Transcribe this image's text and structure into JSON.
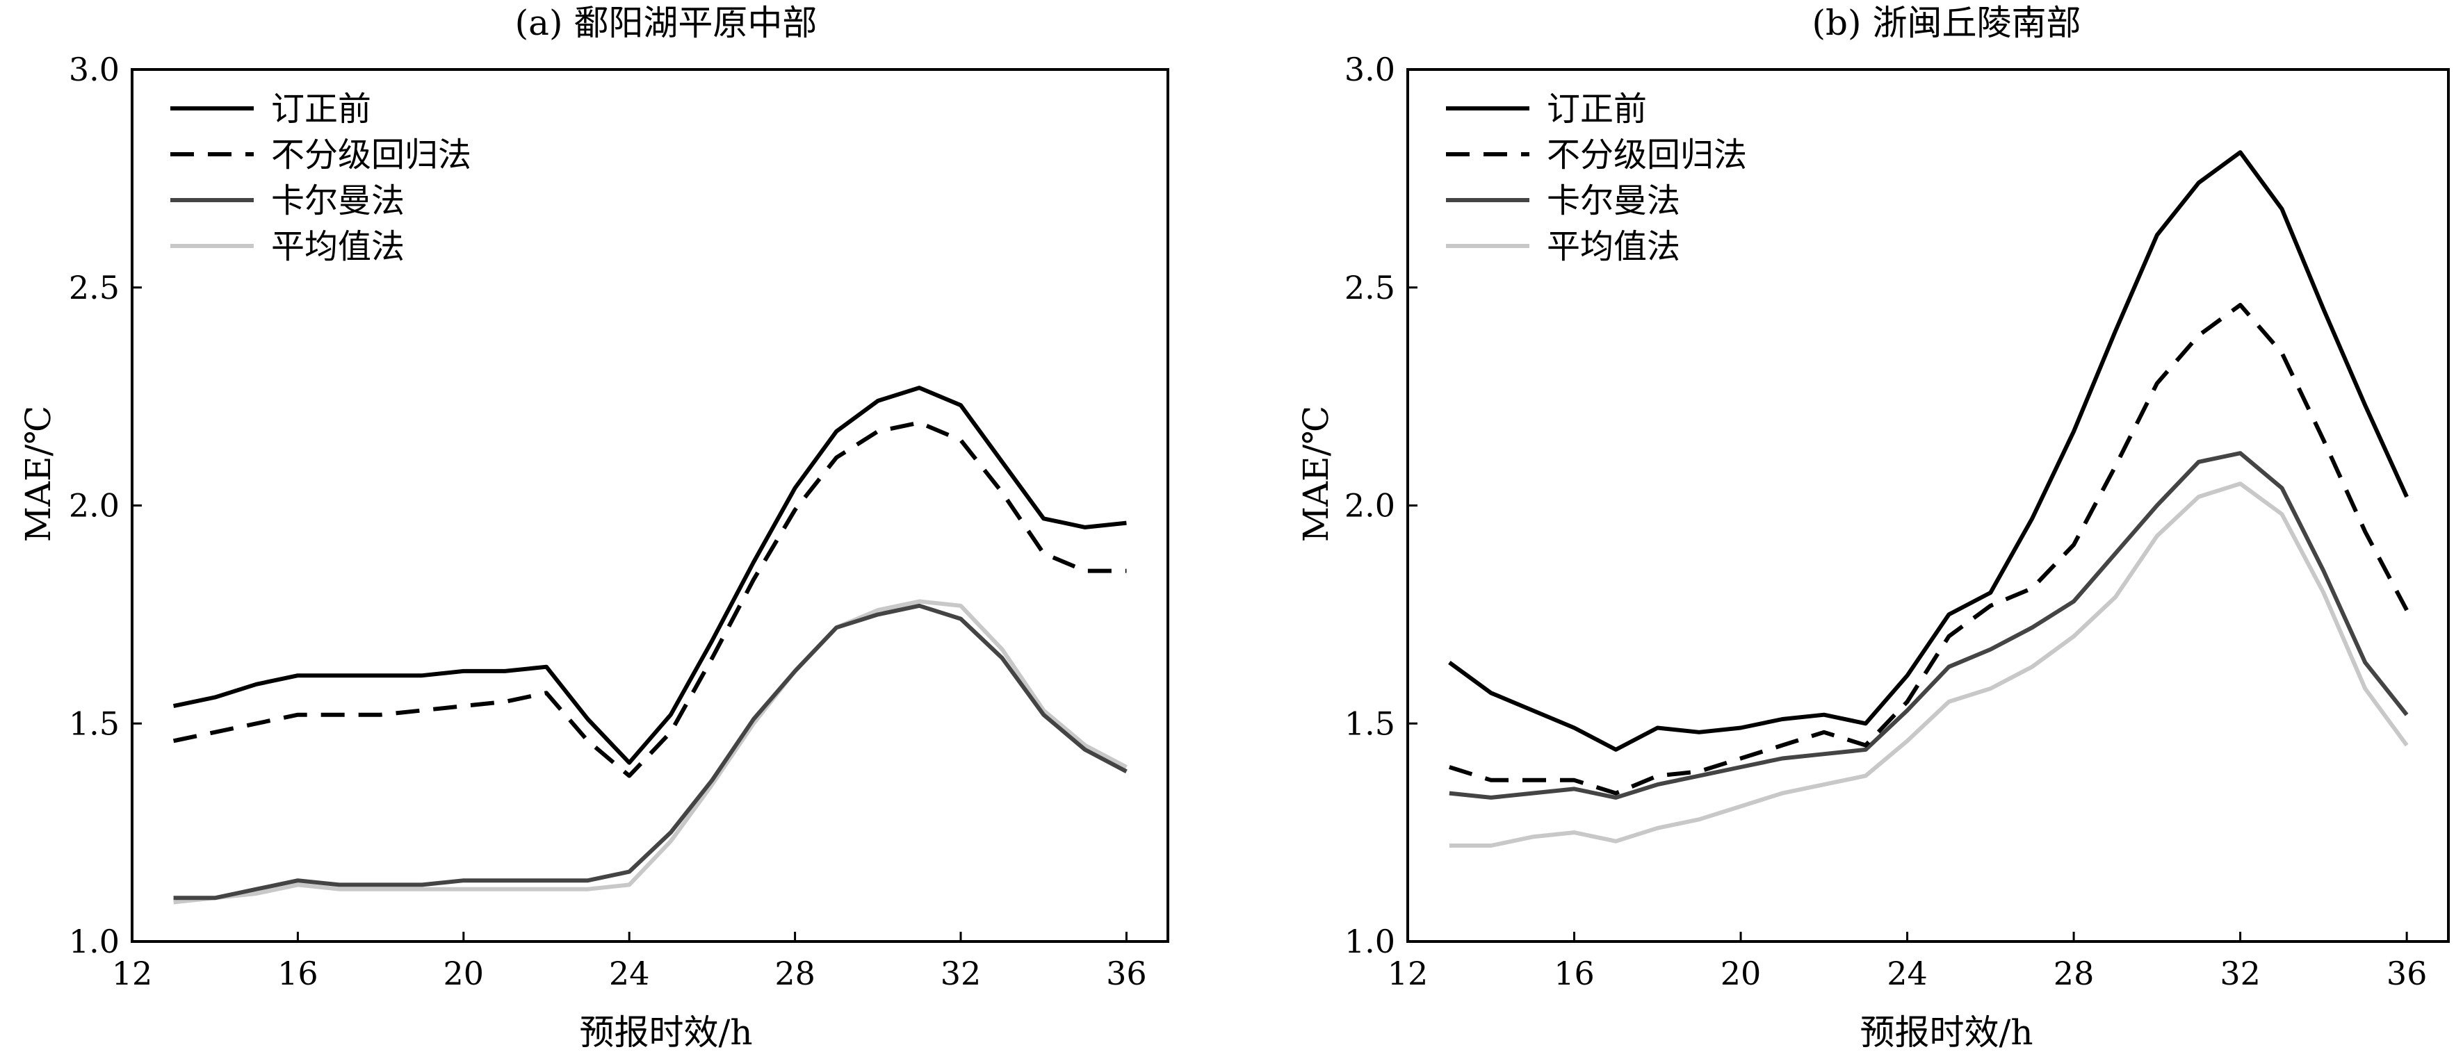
{
  "chart_data": [
    {
      "type": "line",
      "title": "(a) 鄱阳湖平原中部",
      "xlabel": "预报时效/h",
      "ylabel": "MAE/℃",
      "xlim": [
        12,
        37
      ],
      "ylim": [
        1.0,
        3.0
      ],
      "xticks": [
        12,
        16,
        20,
        24,
        28,
        32,
        36
      ],
      "yticks": [
        1.0,
        1.5,
        2.0,
        2.5,
        3.0
      ],
      "xtick_labels": [
        "12",
        "16",
        "20",
        "24",
        "28",
        "32",
        "36"
      ],
      "ytick_labels": [
        "1.0",
        "1.5",
        "2.0",
        "2.5",
        "3.0"
      ],
      "legend_position": "top-left",
      "grid": false,
      "x": [
        13,
        14,
        15,
        16,
        17,
        18,
        19,
        20,
        21,
        22,
        23,
        24,
        25,
        26,
        27,
        28,
        29,
        30,
        31,
        32,
        33,
        34,
        35,
        36
      ],
      "series": [
        {
          "name": "订正前",
          "style": "solid",
          "color": "#000000",
          "values": [
            1.54,
            1.56,
            1.59,
            1.61,
            1.61,
            1.61,
            1.61,
            1.62,
            1.62,
            1.63,
            1.51,
            1.41,
            1.52,
            1.69,
            1.87,
            2.04,
            2.17,
            2.24,
            2.27,
            2.23,
            2.1,
            1.97,
            1.95,
            1.96
          ]
        },
        {
          "name": "不分级回归法",
          "style": "dashed",
          "color": "#000000",
          "values": [
            1.46,
            1.48,
            1.5,
            1.52,
            1.52,
            1.52,
            1.53,
            1.54,
            1.55,
            1.57,
            1.46,
            1.38,
            1.48,
            1.65,
            1.83,
            1.99,
            2.11,
            2.17,
            2.19,
            2.15,
            2.03,
            1.89,
            1.85,
            1.85
          ]
        },
        {
          "name": "卡尔曼法",
          "style": "solid",
          "color": "#444444",
          "values": [
            1.1,
            1.1,
            1.12,
            1.14,
            1.13,
            1.13,
            1.13,
            1.14,
            1.14,
            1.14,
            1.14,
            1.16,
            1.25,
            1.37,
            1.51,
            1.62,
            1.72,
            1.75,
            1.77,
            1.74,
            1.65,
            1.52,
            1.44,
            1.39
          ]
        },
        {
          "name": "平均值法",
          "style": "solid",
          "color": "#c8c8c8",
          "values": [
            1.09,
            1.1,
            1.11,
            1.13,
            1.12,
            1.12,
            1.12,
            1.12,
            1.12,
            1.12,
            1.12,
            1.13,
            1.23,
            1.36,
            1.5,
            1.62,
            1.72,
            1.76,
            1.78,
            1.77,
            1.67,
            1.53,
            1.45,
            1.4
          ]
        }
      ]
    },
    {
      "type": "line",
      "title": "(b) 浙闽丘陵南部",
      "xlabel": "预报时效/h",
      "ylabel": "MAE/℃",
      "xlim": [
        12,
        37
      ],
      "ylim": [
        1.0,
        3.0
      ],
      "xticks": [
        12,
        16,
        20,
        24,
        28,
        32,
        36
      ],
      "yticks": [
        1.0,
        1.5,
        2.0,
        2.5,
        3.0
      ],
      "xtick_labels": [
        "12",
        "16",
        "20",
        "24",
        "28",
        "32",
        "36"
      ],
      "ytick_labels": [
        "1.0",
        "1.5",
        "2.0",
        "2.5",
        "3.0"
      ],
      "legend_position": "top-left",
      "grid": false,
      "x": [
        13,
        14,
        15,
        16,
        17,
        18,
        19,
        20,
        21,
        22,
        23,
        24,
        25,
        26,
        27,
        28,
        29,
        30,
        31,
        32,
        33,
        34,
        35,
        36
      ],
      "series": [
        {
          "name": "订正前",
          "style": "solid",
          "color": "#000000",
          "values": [
            1.64,
            1.57,
            1.53,
            1.49,
            1.44,
            1.49,
            1.48,
            1.49,
            1.51,
            1.52,
            1.5,
            1.61,
            1.75,
            1.8,
            1.97,
            2.17,
            2.4,
            2.62,
            2.74,
            2.81,
            2.68,
            2.45,
            2.23,
            2.02
          ]
        },
        {
          "name": "不分级回归法",
          "style": "dashed",
          "color": "#000000",
          "values": [
            1.4,
            1.37,
            1.37,
            1.37,
            1.34,
            1.38,
            1.39,
            1.42,
            1.45,
            1.48,
            1.45,
            1.55,
            1.7,
            1.77,
            1.81,
            1.91,
            2.09,
            2.28,
            2.39,
            2.46,
            2.35,
            2.15,
            1.94,
            1.76
          ]
        },
        {
          "name": "卡尔曼法",
          "style": "solid",
          "color": "#444444",
          "values": [
            1.34,
            1.33,
            1.34,
            1.35,
            1.33,
            1.36,
            1.38,
            1.4,
            1.42,
            1.43,
            1.44,
            1.53,
            1.63,
            1.67,
            1.72,
            1.78,
            1.89,
            2.0,
            2.1,
            2.12,
            2.04,
            1.85,
            1.64,
            1.52
          ]
        },
        {
          "name": "平均值法",
          "style": "solid",
          "color": "#c8c8c8",
          "values": [
            1.22,
            1.22,
            1.24,
            1.25,
            1.23,
            1.26,
            1.28,
            1.31,
            1.34,
            1.36,
            1.38,
            1.46,
            1.55,
            1.58,
            1.63,
            1.7,
            1.79,
            1.93,
            2.02,
            2.05,
            1.98,
            1.8,
            1.58,
            1.45
          ]
        }
      ]
    }
  ]
}
